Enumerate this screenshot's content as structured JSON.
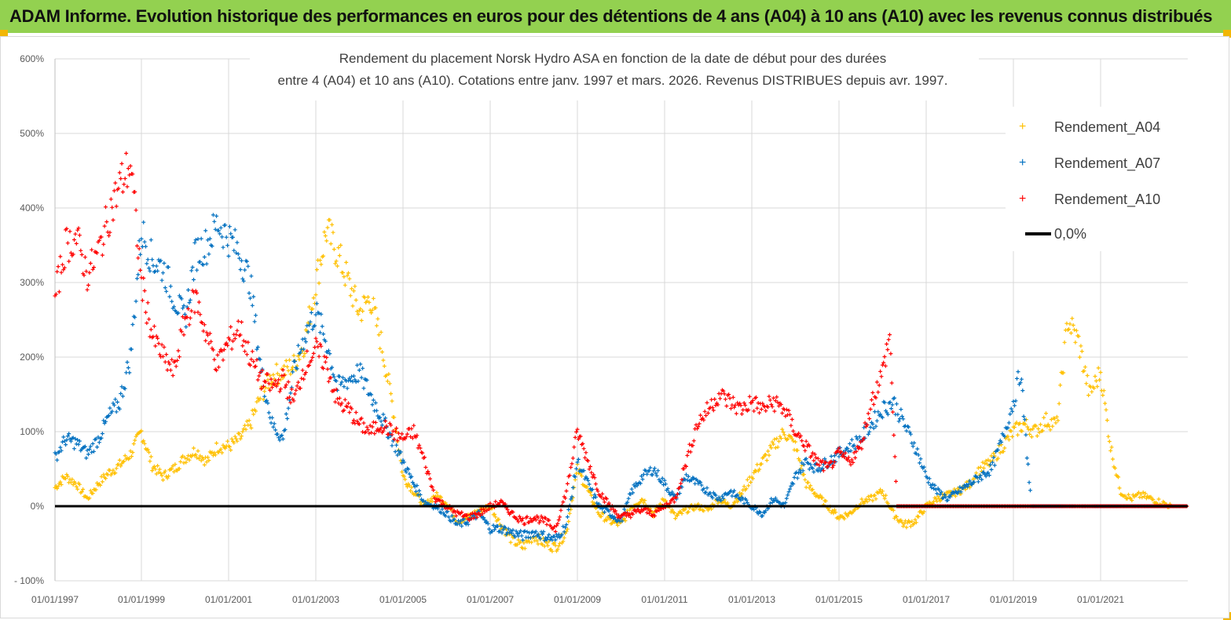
{
  "header": {
    "title": "ADAM Informe. Evolution historique des performances en euros pour des détentions de 4 ans (A04) à 10 ans (A10) avec les revenus connus distribués"
  },
  "colors": {
    "header_bg": "#93d150",
    "A04": "#ffc000",
    "A07": "#0070c0",
    "A10": "#ff0000",
    "zero": "#000000"
  },
  "chart_data": {
    "type": "scatter",
    "title_lines": [
      "Rendement du placement Norsk Hydro ASA en fonction de la date de début pour des durées",
      "entre 4 (A04) et 10 ans (A10). Cotations entre janv. 1997 et mars. 2026. Revenus DISTRIBUES depuis avr. 1997."
    ],
    "y_ticks": [
      "600%",
      "500%",
      "400%",
      "300%",
      "200%",
      "100%",
      "0%",
      "- 100%"
    ],
    "ylim": [
      -100,
      600
    ],
    "x_tick_labels": [
      "01/01/1997",
      "01/01/1999",
      "01/01/2001",
      "01/01/2003",
      "01/01/2005",
      "01/01/2007",
      "01/01/2009",
      "01/01/2011",
      "01/01/2013",
      "01/01/2015",
      "01/01/2017",
      "01/01/2019",
      "01/01/2021"
    ],
    "xlim": [
      "1997-01-01",
      "2023-03-01"
    ],
    "legend_position": "top-right",
    "grid": true,
    "legend": [
      "Rendement_A04",
      "Rendement_A07",
      "Rendement_A10",
      "0,0%"
    ],
    "series": [
      {
        "name": "Rendement_A04",
        "points": [
          [
            "1997-01-01",
            25
          ],
          [
            "1997-04-01",
            40
          ],
          [
            "1997-07-01",
            30
          ],
          [
            "1997-10-01",
            10
          ],
          [
            "1998-01-01",
            30
          ],
          [
            "1998-04-01",
            45
          ],
          [
            "1998-07-01",
            55
          ],
          [
            "1998-10-01",
            70
          ],
          [
            "1999-01-01",
            100
          ],
          [
            "1999-04-01",
            55
          ],
          [
            "1999-07-01",
            40
          ],
          [
            "1999-10-01",
            50
          ],
          [
            "2000-01-01",
            65
          ],
          [
            "2000-04-01",
            75
          ],
          [
            "2000-07-01",
            60
          ],
          [
            "2000-10-01",
            80
          ],
          [
            "2001-01-01",
            80
          ],
          [
            "2001-04-01",
            90
          ],
          [
            "2001-07-01",
            110
          ],
          [
            "2001-10-01",
            150
          ],
          [
            "2002-01-01",
            175
          ],
          [
            "2002-04-01",
            180
          ],
          [
            "2002-07-01",
            190
          ],
          [
            "2002-10-01",
            220
          ],
          [
            "2003-01-01",
            300
          ],
          [
            "2003-04-01",
            370
          ],
          [
            "2003-07-01",
            340
          ],
          [
            "2003-10-01",
            300
          ],
          [
            "2004-01-01",
            260
          ],
          [
            "2004-04-01",
            280
          ],
          [
            "2004-07-01",
            220
          ],
          [
            "2004-10-01",
            140
          ],
          [
            "2005-01-01",
            40
          ],
          [
            "2005-04-01",
            20
          ],
          [
            "2005-07-01",
            0
          ],
          [
            "2005-10-01",
            15
          ],
          [
            "2006-01-01",
            5
          ],
          [
            "2006-04-01",
            -20
          ],
          [
            "2006-07-01",
            -15
          ],
          [
            "2006-10-01",
            -5
          ],
          [
            "2007-01-01",
            0
          ],
          [
            "2007-04-01",
            -25
          ],
          [
            "2007-07-01",
            -45
          ],
          [
            "2007-10-01",
            -55
          ],
          [
            "2008-01-01",
            -40
          ],
          [
            "2008-04-01",
            -50
          ],
          [
            "2008-07-01",
            -55
          ],
          [
            "2008-10-01",
            -35
          ],
          [
            "2009-01-01",
            50
          ],
          [
            "2009-04-01",
            20
          ],
          [
            "2009-07-01",
            -10
          ],
          [
            "2009-10-01",
            -20
          ],
          [
            "2010-01-01",
            -25
          ],
          [
            "2010-04-01",
            0
          ],
          [
            "2010-07-01",
            10
          ],
          [
            "2010-10-01",
            -10
          ],
          [
            "2011-01-01",
            10
          ],
          [
            "2011-04-01",
            -15
          ],
          [
            "2011-07-01",
            -5
          ],
          [
            "2011-10-01",
            0
          ],
          [
            "2012-01-01",
            -5
          ],
          [
            "2012-04-01",
            10
          ],
          [
            "2012-07-01",
            0
          ],
          [
            "2012-10-01",
            15
          ],
          [
            "2013-01-01",
            40
          ],
          [
            "2013-04-01",
            60
          ],
          [
            "2013-07-01",
            80
          ],
          [
            "2013-10-01",
            100
          ],
          [
            "2014-01-01",
            80
          ],
          [
            "2014-04-01",
            30
          ],
          [
            "2014-07-01",
            15
          ],
          [
            "2014-10-01",
            0
          ],
          [
            "2015-01-01",
            -15
          ],
          [
            "2015-04-01",
            -10
          ],
          [
            "2015-07-01",
            5
          ],
          [
            "2015-10-01",
            10
          ],
          [
            "2016-01-01",
            20
          ],
          [
            "2016-04-01",
            -10
          ],
          [
            "2016-07-01",
            -25
          ],
          [
            "2016-10-01",
            -20
          ],
          [
            "2017-01-01",
            0
          ],
          [
            "2017-04-01",
            10
          ],
          [
            "2017-07-01",
            15
          ],
          [
            "2017-10-01",
            20
          ],
          [
            "2018-01-01",
            30
          ],
          [
            "2018-04-01",
            50
          ],
          [
            "2018-07-01",
            60
          ],
          [
            "2018-10-01",
            80
          ],
          [
            "2019-01-01",
            100
          ],
          [
            "2019-04-01",
            110
          ],
          [
            "2019-07-01",
            100
          ],
          [
            "2019-10-01",
            115
          ],
          [
            "2020-01-01",
            110
          ],
          [
            "2020-04-01",
            250
          ],
          [
            "2020-07-01",
            220
          ],
          [
            "2020-10-01",
            150
          ],
          [
            "2021-01-01",
            180
          ],
          [
            "2021-04-01",
            80
          ],
          [
            "2021-07-01",
            20
          ],
          [
            "2021-10-01",
            10
          ],
          [
            "2022-01-01",
            15
          ],
          [
            "2022-04-01",
            10
          ],
          [
            "2022-07-01",
            5
          ],
          [
            "2022-10-01",
            0
          ],
          [
            "2023-03-01",
            0
          ]
        ]
      },
      {
        "name": "Rendement_A07",
        "points": [
          [
            "1997-01-01",
            65
          ],
          [
            "1997-04-01",
            90
          ],
          [
            "1997-07-01",
            85
          ],
          [
            "1997-10-01",
            70
          ],
          [
            "1998-01-01",
            90
          ],
          [
            "1998-04-01",
            120
          ],
          [
            "1998-07-01",
            140
          ],
          [
            "1998-10-01",
            200
          ],
          [
            "1999-01-01",
            370
          ],
          [
            "1999-04-01",
            330
          ],
          [
            "1999-07-01",
            320
          ],
          [
            "1999-10-01",
            280
          ],
          [
            "2000-01-01",
            250
          ],
          [
            "2000-04-01",
            340
          ],
          [
            "2000-07-01",
            350
          ],
          [
            "2000-10-01",
            380
          ],
          [
            "2001-01-01",
            360
          ],
          [
            "2001-04-01",
            340
          ],
          [
            "2001-07-01",
            300
          ],
          [
            "2001-10-01",
            180
          ],
          [
            "2002-01-01",
            110
          ],
          [
            "2002-04-01",
            90
          ],
          [
            "2002-07-01",
            180
          ],
          [
            "2002-10-01",
            230
          ],
          [
            "2003-01-01",
            260
          ],
          [
            "2003-04-01",
            220
          ],
          [
            "2003-07-01",
            160
          ],
          [
            "2003-10-01",
            170
          ],
          [
            "2004-01-01",
            180
          ],
          [
            "2004-04-01",
            150
          ],
          [
            "2004-07-01",
            120
          ],
          [
            "2004-10-01",
            90
          ],
          [
            "2005-01-01",
            60
          ],
          [
            "2005-04-01",
            30
          ],
          [
            "2005-07-01",
            5
          ],
          [
            "2005-10-01",
            0
          ],
          [
            "2006-01-01",
            -10
          ],
          [
            "2006-04-01",
            -25
          ],
          [
            "2006-07-01",
            -20
          ],
          [
            "2006-10-01",
            -10
          ],
          [
            "2007-01-01",
            -30
          ],
          [
            "2007-04-01",
            -30
          ],
          [
            "2007-07-01",
            -35
          ],
          [
            "2007-10-01",
            -40
          ],
          [
            "2008-01-01",
            -35
          ],
          [
            "2008-04-01",
            -40
          ],
          [
            "2008-07-01",
            -45
          ],
          [
            "2008-10-01",
            -25
          ],
          [
            "2009-01-01",
            60
          ],
          [
            "2009-04-01",
            30
          ],
          [
            "2009-07-01",
            0
          ],
          [
            "2009-10-01",
            -10
          ],
          [
            "2010-01-01",
            -20
          ],
          [
            "2010-04-01",
            20
          ],
          [
            "2010-07-01",
            40
          ],
          [
            "2010-10-01",
            50
          ],
          [
            "2011-01-01",
            30
          ],
          [
            "2011-04-01",
            10
          ],
          [
            "2011-07-01",
            40
          ],
          [
            "2011-10-01",
            30
          ],
          [
            "2012-01-01",
            20
          ],
          [
            "2012-04-01",
            10
          ],
          [
            "2012-07-01",
            20
          ],
          [
            "2012-10-01",
            10
          ],
          [
            "2013-01-01",
            0
          ],
          [
            "2013-04-01",
            -10
          ],
          [
            "2013-07-01",
            10
          ],
          [
            "2013-10-01",
            0
          ],
          [
            "2014-01-01",
            40
          ],
          [
            "2014-04-01",
            60
          ],
          [
            "2014-07-01",
            50
          ],
          [
            "2014-10-01",
            60
          ],
          [
            "2015-01-01",
            70
          ],
          [
            "2015-04-01",
            80
          ],
          [
            "2015-07-01",
            90
          ],
          [
            "2015-10-01",
            110
          ],
          [
            "2016-01-01",
            130
          ],
          [
            "2016-04-01",
            140
          ],
          [
            "2016-07-01",
            110
          ],
          [
            "2016-10-01",
            80
          ],
          [
            "2017-01-01",
            40
          ],
          [
            "2017-04-01",
            20
          ],
          [
            "2017-07-01",
            10
          ],
          [
            "2017-10-01",
            20
          ],
          [
            "2018-01-01",
            30
          ],
          [
            "2018-04-01",
            40
          ],
          [
            "2018-07-01",
            50
          ],
          [
            "2018-10-01",
            90
          ],
          [
            "2019-01-01",
            140
          ],
          [
            "2019-03-01",
            180
          ],
          [
            "2019-06-01",
            0
          ],
          [
            "2023-03-01",
            0
          ]
        ]
      },
      {
        "name": "Rendement_A10",
        "points": [
          [
            "1997-01-01",
            280
          ],
          [
            "1997-04-01",
            350
          ],
          [
            "1997-07-01",
            360
          ],
          [
            "1997-10-01",
            310
          ],
          [
            "1998-01-01",
            340
          ],
          [
            "1998-04-01",
            390
          ],
          [
            "1998-07-01",
            430
          ],
          [
            "1998-10-01",
            460
          ],
          [
            "1999-01-01",
            300
          ],
          [
            "1999-04-01",
            230
          ],
          [
            "1999-07-01",
            200
          ],
          [
            "1999-10-01",
            180
          ],
          [
            "2000-01-01",
            250
          ],
          [
            "2000-04-01",
            280
          ],
          [
            "2000-07-01",
            230
          ],
          [
            "2000-10-01",
            190
          ],
          [
            "2001-01-01",
            220
          ],
          [
            "2001-04-01",
            240
          ],
          [
            "2001-07-01",
            200
          ],
          [
            "2001-10-01",
            170
          ],
          [
            "2002-01-01",
            160
          ],
          [
            "2002-04-01",
            170
          ],
          [
            "2002-07-01",
            140
          ],
          [
            "2002-10-01",
            190
          ],
          [
            "2003-01-01",
            210
          ],
          [
            "2003-04-01",
            190
          ],
          [
            "2003-07-01",
            140
          ],
          [
            "2003-10-01",
            130
          ],
          [
            "2004-01-01",
            110
          ],
          [
            "2004-04-01",
            100
          ],
          [
            "2004-07-01",
            110
          ],
          [
            "2004-10-01",
            100
          ],
          [
            "2005-01-01",
            90
          ],
          [
            "2005-04-01",
            100
          ],
          [
            "2005-07-01",
            60
          ],
          [
            "2005-10-01",
            10
          ],
          [
            "2006-01-01",
            0
          ],
          [
            "2006-04-01",
            -10
          ],
          [
            "2006-07-01",
            -15
          ],
          [
            "2006-10-01",
            -10
          ],
          [
            "2007-01-01",
            0
          ],
          [
            "2007-04-01",
            5
          ],
          [
            "2007-07-01",
            -10
          ],
          [
            "2007-10-01",
            -20
          ],
          [
            "2008-01-01",
            -15
          ],
          [
            "2008-04-01",
            -20
          ],
          [
            "2008-07-01",
            -30
          ],
          [
            "2008-10-01",
            20
          ],
          [
            "2009-01-01",
            100
          ],
          [
            "2009-04-01",
            60
          ],
          [
            "2009-07-01",
            20
          ],
          [
            "2009-10-01",
            0
          ],
          [
            "2010-01-01",
            -15
          ],
          [
            "2010-04-01",
            -10
          ],
          [
            "2010-07-01",
            -5
          ],
          [
            "2010-10-01",
            -10
          ],
          [
            "2011-01-01",
            0
          ],
          [
            "2011-04-01",
            10
          ],
          [
            "2011-07-01",
            60
          ],
          [
            "2011-10-01",
            110
          ],
          [
            "2012-01-01",
            130
          ],
          [
            "2012-04-01",
            150
          ],
          [
            "2012-07-01",
            140
          ],
          [
            "2012-10-01",
            130
          ],
          [
            "2013-01-01",
            140
          ],
          [
            "2013-04-01",
            130
          ],
          [
            "2013-07-01",
            140
          ],
          [
            "2013-10-01",
            130
          ],
          [
            "2014-01-01",
            100
          ],
          [
            "2014-04-01",
            80
          ],
          [
            "2014-07-01",
            60
          ],
          [
            "2014-10-01",
            50
          ],
          [
            "2015-01-01",
            70
          ],
          [
            "2015-04-01",
            60
          ],
          [
            "2015-07-01",
            80
          ],
          [
            "2015-10-01",
            140
          ],
          [
            "2016-01-01",
            180
          ],
          [
            "2016-03-01",
            230
          ],
          [
            "2016-05-01",
            0
          ],
          [
            "2023-03-01",
            0
          ]
        ]
      }
    ]
  }
}
